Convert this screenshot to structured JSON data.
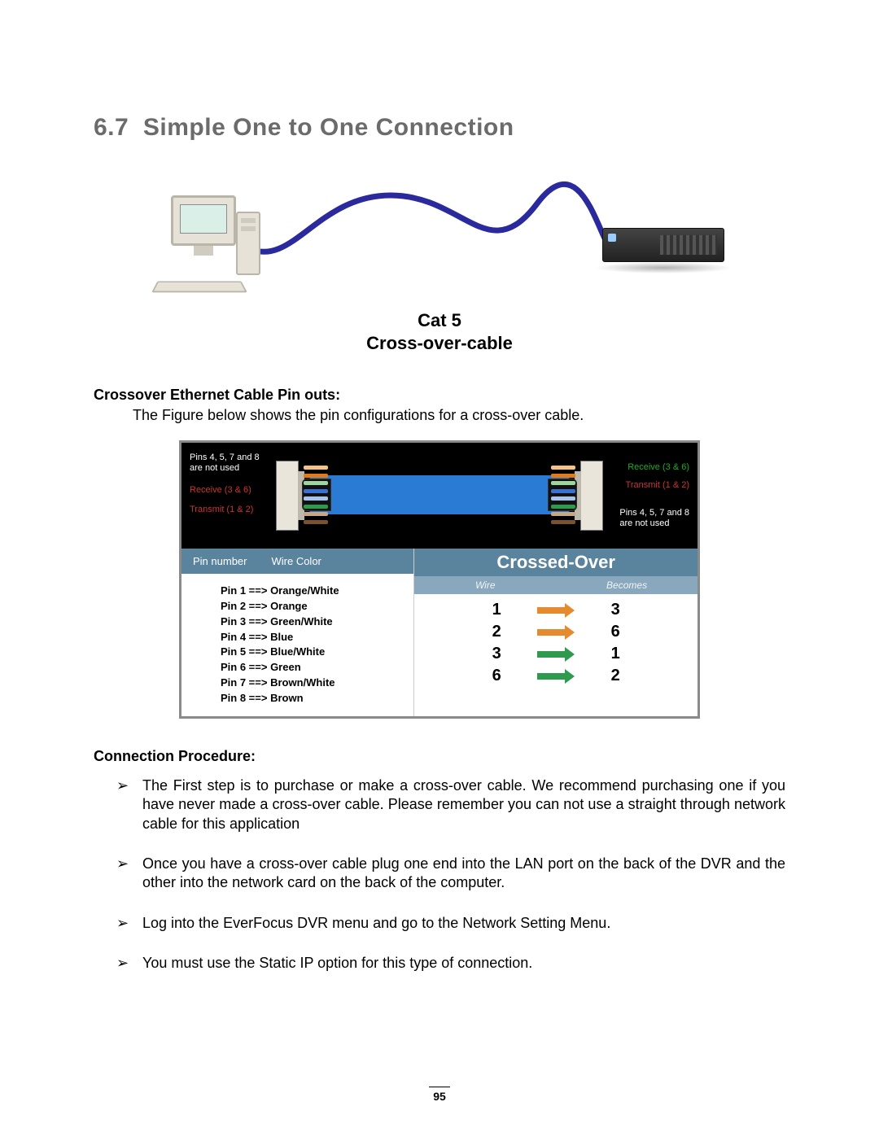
{
  "colors": {
    "heading_gray": "#6b6b6b",
    "cable_blue": "#2a2a9e",
    "connector_cable_blue": "#2a7bd4",
    "table_header_blue": "#5a839e",
    "table_sub_blue": "#8aa8bd",
    "arrow_orange": "#e58a2e",
    "arrow_green": "#2e9a4d",
    "label_red": "#c33333",
    "label_green": "#22aa22"
  },
  "heading": {
    "number": "6.7",
    "title": "Simple One to One Connection"
  },
  "cable_caption": {
    "line1": "Cat 5",
    "line2": "Cross-over-cable"
  },
  "crossover_heading": "Crossover Ethernet Cable Pin outs:",
  "crossover_intro": "The Figure below shows the pin configurations for a cross-over cable.",
  "pinout_labels": {
    "unused_left": "Pins 4, 5, 7 and 8\nare not used",
    "receive_left": "Receive (3 & 6)",
    "transmit_left": "Transmit (1 & 2)",
    "receive_right": "Receive (3 & 6)",
    "transmit_right": "Transmit (1 & 2)",
    "unused_right": "Pins 4, 5, 7 and 8\nare not used"
  },
  "pin_table": {
    "col1": "Pin number",
    "col2": "Wire Color",
    "rows": [
      "Pin 1 ==> Orange/White",
      "Pin 2 ==> Orange",
      "Pin 3 ==> Green/White",
      "Pin 4 ==> Blue",
      "Pin 5 ==> Blue/White",
      "Pin 6 ==> Green",
      "Pin 7 ==> Brown/White",
      "Pin 8 ==> Brown"
    ]
  },
  "crossed_table": {
    "title": "Crossed-Over",
    "sub_left": "Wire",
    "sub_right": "Becomes",
    "rows": [
      {
        "from": "1",
        "to": "3",
        "color": "orange"
      },
      {
        "from": "2",
        "to": "6",
        "color": "orange"
      },
      {
        "from": "3",
        "to": "1",
        "color": "green"
      },
      {
        "from": "6",
        "to": "2",
        "color": "green"
      }
    ]
  },
  "wire_colors": [
    "#f4c28a",
    "#e07a1a",
    "#9fd69f",
    "#3a6fd4",
    "#a7c3ee",
    "#2e9a4d",
    "#c7a585",
    "#7a5230"
  ],
  "procedure_heading": "Connection Procedure:",
  "procedure": [
    "The First step is to purchase or make a cross-over cable. We recommend purchasing one if you have never made a cross-over cable. Please remember you can not use a straight through network cable for this application",
    "Once you have a cross-over cable plug one end into the LAN port on the back of the DVR and the other into the network card on the back of the computer.",
    "Log into the EverFocus DVR menu and go to the Network Setting Menu.",
    "You must use the Static IP option for this type of connection."
  ],
  "page_number": "95"
}
